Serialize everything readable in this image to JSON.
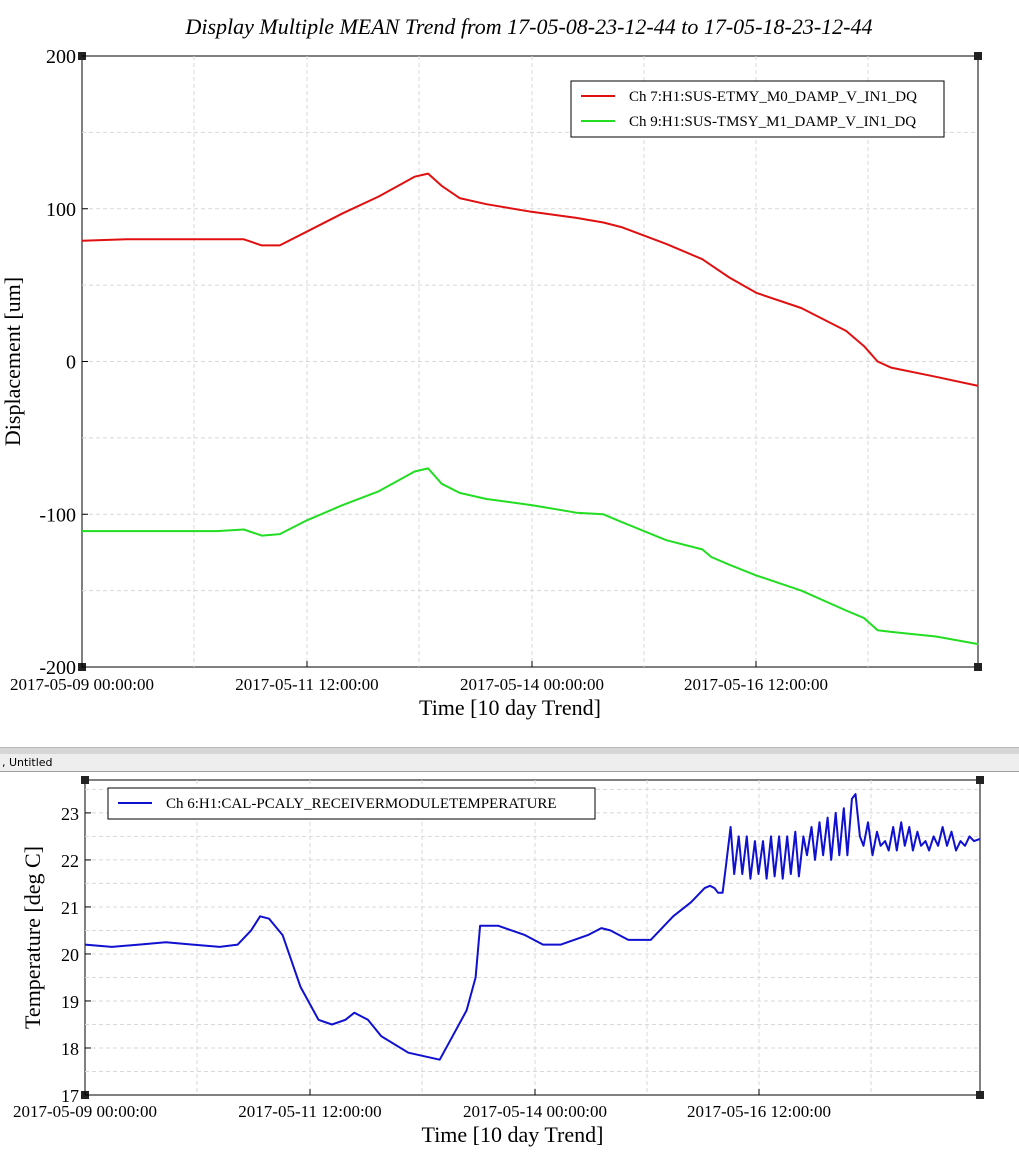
{
  "tab": {
    "label": ", Untitled"
  },
  "chart_data": [
    {
      "type": "line",
      "title": "Display Multiple MEAN Trend from 17-05-08-23-12-44 to 17-05-18-23-12-44",
      "xlabel": "Time [10 day Trend]",
      "ylabel": "Displacement [um]",
      "xlim": [
        "2017-05-09 00:00:00",
        "2017-05-18 23:12:44"
      ],
      "ylim": [
        -200,
        200
      ],
      "yticks": [
        -200,
        -100,
        0,
        100,
        200
      ],
      "xtick_labels": [
        "2017-05-09 00:00:00",
        "2017-05-11 12:00:00",
        "2017-05-14 00:00:00",
        "2017-05-16 12:00:00"
      ],
      "grid": true,
      "legend_position": "top-right",
      "series": [
        {
          "name": "Ch 7:H1:SUS-ETMY_M0_DAMP_V_IN1_DQ",
          "color": "#e01010",
          "x": [
            0,
            0.5,
            1.0,
            1.5,
            1.8,
            2.0,
            2.2,
            2.5,
            2.9,
            3.3,
            3.7,
            3.85,
            4.0,
            4.2,
            4.5,
            5.0,
            5.5,
            5.8,
            6.0,
            6.5,
            6.9,
            7.0,
            7.2,
            7.5,
            8.0,
            8.5,
            8.7,
            8.85,
            9.0,
            9.5,
            9.97
          ],
          "y": [
            79,
            80,
            80,
            80,
            80,
            76,
            76,
            85,
            97,
            108,
            121,
            123,
            115,
            107,
            103,
            98,
            94,
            91,
            88,
            77,
            67,
            63,
            55,
            45,
            35,
            20,
            10,
            0,
            -4,
            -10,
            -16
          ]
        },
        {
          "name": "Ch 9:H1:SUS-TMSY_M1_DAMP_V_IN1_DQ",
          "color": "#22dd22",
          "x": [
            0,
            0.5,
            1.0,
            1.5,
            1.8,
            2.0,
            2.2,
            2.5,
            2.9,
            3.3,
            3.7,
            3.85,
            4.0,
            4.2,
            4.5,
            5.0,
            5.5,
            5.8,
            6.0,
            6.5,
            6.9,
            7.0,
            7.2,
            7.5,
            8.0,
            8.5,
            8.7,
            8.85,
            9.0,
            9.5,
            9.97
          ],
          "y": [
            -111,
            -111,
            -111,
            -111,
            -110,
            -114,
            -113,
            -104,
            -94,
            -85,
            -72,
            -70,
            -80,
            -86,
            -90,
            -94,
            -99,
            -100,
            -105,
            -117,
            -123,
            -128,
            -133,
            -140,
            -150,
            -163,
            -168,
            -176,
            -177,
            -180,
            -185
          ]
        }
      ]
    },
    {
      "type": "line",
      "title": "",
      "xlabel": "Time [10 day Trend]",
      "ylabel": "Temperature [deg C]",
      "xlim": [
        "2017-05-09 00:00:00",
        "2017-05-18 23:12:44"
      ],
      "ylim": [
        17,
        23.7
      ],
      "yticks": [
        17,
        18,
        19,
        20,
        21,
        22,
        23
      ],
      "xtick_labels": [
        "2017-05-09 00:00:00",
        "2017-05-11 12:00:00",
        "2017-05-14 00:00:00",
        "2017-05-16 12:00:00"
      ],
      "grid": true,
      "legend_position": "top-left",
      "series": [
        {
          "name": "Ch 6:H1:CAL-PCALY_RECEIVERMODULETEMPERATURE",
          "color": "#1010d0",
          "x": [
            0,
            0.3,
            0.6,
            0.9,
            1.2,
            1.5,
            1.7,
            1.85,
            1.95,
            2.05,
            2.2,
            2.4,
            2.6,
            2.75,
            2.9,
            3.0,
            3.15,
            3.3,
            3.6,
            3.95,
            4.05,
            4.25,
            4.35,
            4.4,
            4.6,
            4.9,
            5.1,
            5.3,
            5.6,
            5.75,
            5.85,
            6.05,
            6.3,
            6.55,
            6.75,
            6.9,
            6.96,
            7.01,
            7.05,
            7.1,
            7.14,
            7.19,
            7.23,
            7.28,
            7.32,
            7.37,
            7.41,
            7.46,
            7.5,
            7.55,
            7.59,
            7.64,
            7.68,
            7.73,
            7.77,
            7.82,
            7.86,
            7.91,
            7.95,
            8.0,
            8.04,
            8.09,
            8.13,
            8.18,
            8.22,
            8.27,
            8.31,
            8.36,
            8.4,
            8.45,
            8.49,
            8.54,
            8.58,
            8.63,
            8.67,
            8.72,
            8.77,
            8.82,
            8.86,
            8.91,
            8.95,
            9.0,
            9.04,
            9.09,
            9.13,
            9.18,
            9.22,
            9.27,
            9.31,
            9.36,
            9.4,
            9.45,
            9.5,
            9.55,
            9.6,
            9.65,
            9.7,
            9.75,
            9.8,
            9.85,
            9.9,
            9.97
          ],
          "y": [
            20.2,
            20.15,
            20.2,
            20.25,
            20.2,
            20.15,
            20.2,
            20.5,
            20.8,
            20.75,
            20.4,
            19.3,
            18.6,
            18.5,
            18.6,
            18.75,
            18.6,
            18.25,
            17.9,
            17.75,
            18.1,
            18.8,
            19.5,
            20.6,
            20.6,
            20.4,
            20.2,
            20.2,
            20.4,
            20.55,
            20.5,
            20.3,
            20.3,
            20.8,
            21.1,
            21.4,
            21.45,
            21.4,
            21.3,
            21.3,
            21.9,
            22.7,
            21.7,
            22.5,
            21.7,
            22.5,
            21.6,
            22.4,
            21.7,
            22.4,
            21.6,
            22.5,
            21.65,
            22.5,
            21.6,
            22.5,
            21.7,
            22.6,
            21.65,
            22.5,
            22.1,
            22.7,
            22.0,
            22.8,
            22.1,
            22.9,
            22.0,
            23.0,
            22.1,
            23.1,
            22.1,
            23.3,
            23.4,
            22.5,
            22.3,
            22.8,
            22.1,
            22.6,
            22.3,
            22.4,
            22.2,
            22.7,
            22.2,
            22.8,
            22.3,
            22.7,
            22.2,
            22.6,
            22.3,
            22.4,
            22.2,
            22.5,
            22.3,
            22.7,
            22.3,
            22.6,
            22.2,
            22.4,
            22.3,
            22.5,
            22.4,
            22.45
          ]
        }
      ]
    }
  ]
}
